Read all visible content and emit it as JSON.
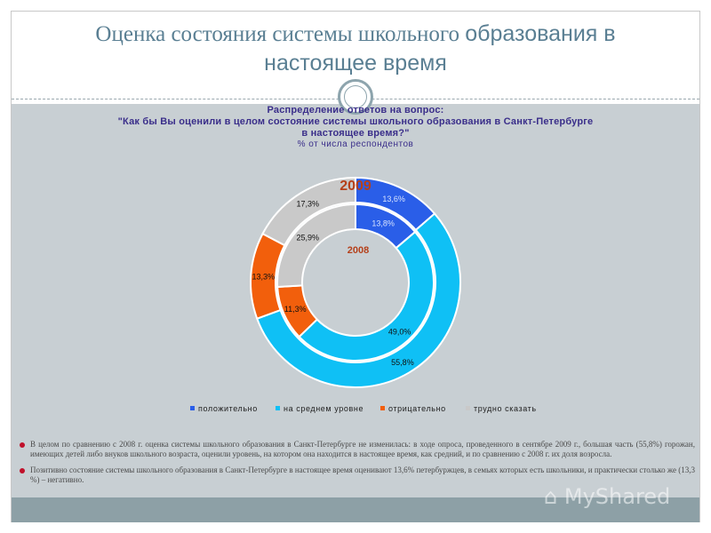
{
  "slide": {
    "title_line1_serif": "Оценка состояния системы школьного ",
    "title_line1_sans": "образования в",
    "title_line2": "настоящее время"
  },
  "chart_header": {
    "line1": "Распределение ответов на вопрос:",
    "line2": "\"Как бы Вы оценили в целом состояние системы школьного образования в Санкт-Петербурге",
    "line3": "в настоящее время?\"",
    "line4": "% от числа респондентов"
  },
  "chart_data": {
    "type": "donut",
    "categories": [
      "положительно",
      "на среднем уровне",
      "отрицательно",
      "трудно сказать"
    ],
    "colors": [
      "#2a5ee8",
      "#0fc0f5",
      "#f25f0c",
      "#c9c9c9"
    ],
    "series": [
      {
        "name": "2009",
        "values": [
          13.6,
          55.8,
          13.3,
          17.3
        ],
        "labels": [
          "13,6%",
          "55,8%",
          "13,3%",
          "17,3%"
        ]
      },
      {
        "name": "2008",
        "values": [
          13.8,
          49.0,
          11.3,
          25.9
        ],
        "labels": [
          "13,8%",
          "49,0%",
          "11,3%",
          "25,9%"
        ]
      }
    ],
    "legend_position": "bottom"
  },
  "bullets": [
    "В целом по сравнению с 2008 г. оценка системы школьного образования в Санкт-Петербурге не изменилась: в ходе опроса, проведенного в сентябре 2009 г., большая часть (55,8%) горожан, имеющих детей либо внуков школьного возраста, оценили уровень, на котором она находится в настоящее время, как средний, и по сравнению с 2008 г. их доля возросла.",
    "Позитивно состояние системы школьного образования в Санкт-Петербурге в настоящее время оценивают 13,6% петербуржцев, в семьях которых есть школьники, и практически столько же (13,3 %) – негативно."
  ],
  "watermark": "MyShared"
}
